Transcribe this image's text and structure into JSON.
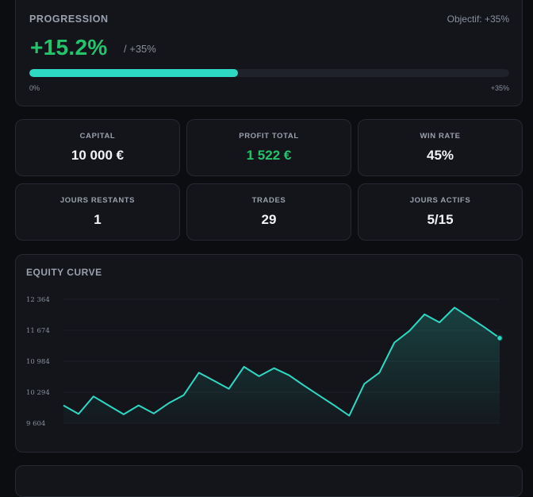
{
  "progression": {
    "title": "PROGRESSION",
    "target": "Objectif: +35%",
    "percent": "+15.2%",
    "goal": "/ +35%",
    "bar_fraction": 0.434,
    "bar_min_label": "0%",
    "bar_max_label": "+35%",
    "bar_color": "#2ed9c3"
  },
  "stats": [
    {
      "label": "CAPITAL",
      "value": "10 000 €",
      "color": "#f1f3f6"
    },
    {
      "label": "PROFIT TOTAL",
      "value": "1 522 €",
      "color": "#22c56b"
    },
    {
      "label": "WIN RATE",
      "value": "45%",
      "color": "#f1f3f6"
    },
    {
      "label": "JOURS RESTANTS",
      "value": "1",
      "color": "#f1f3f6"
    },
    {
      "label": "TRADES",
      "value": "29",
      "color": "#f1f3f6"
    },
    {
      "label": "JOURS ACTIFS",
      "value": "5/15",
      "color": "#f1f3f6"
    }
  ],
  "equity": {
    "title": "EQUITY CURVE"
  },
  "chart_data": {
    "type": "area",
    "title": "EQUITY CURVE",
    "yticks": [
      9604,
      10294,
      10984,
      11674,
      12364
    ],
    "ytick_labels": [
      "9 604",
      "10 294",
      "10 984",
      "11 674",
      "12 364"
    ],
    "ylim": [
      9604,
      12364
    ],
    "grid": true,
    "line_color": "#2ed9c3",
    "x": [
      0,
      1,
      2,
      3,
      4,
      5,
      6,
      7,
      8,
      9,
      10,
      11,
      12,
      13,
      14,
      15,
      16,
      17,
      18,
      19,
      20,
      21,
      22,
      23,
      24,
      25,
      26,
      27,
      28,
      29
    ],
    "y": [
      10000,
      9810,
      10200,
      10000,
      9800,
      10000,
      9820,
      10050,
      10230,
      10730,
      10550,
      10370,
      10860,
      10650,
      10830,
      10670,
      10440,
      10220,
      10000,
      9770,
      10480,
      10730,
      11400,
      11660,
      12030,
      11850,
      12180,
      11960,
      11740,
      11500
    ]
  }
}
